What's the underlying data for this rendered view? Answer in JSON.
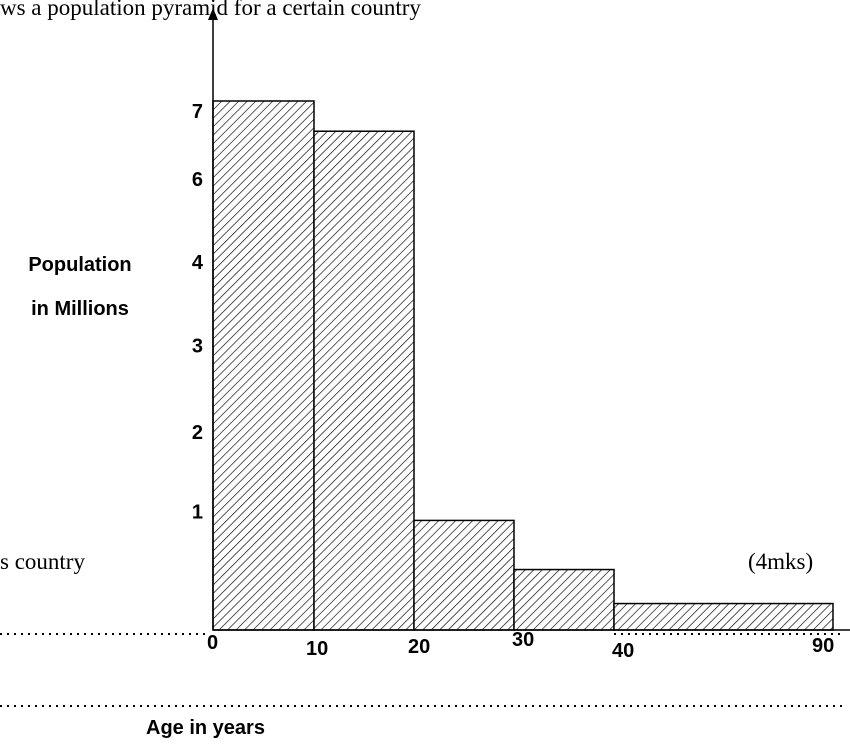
{
  "text": {
    "top_fragment": "ws a population pyramid for a certain country",
    "left_fragment": "s country",
    "marks": "(4mks)"
  },
  "chart_data": {
    "type": "bar",
    "title": "",
    "ylabel": "Population\nin Millions",
    "xlabel": "Age in years",
    "y_tick_labels": [
      "7",
      "6",
      "4",
      "3",
      "2",
      "1"
    ],
    "x_tick_labels": [
      "0",
      "10",
      "20",
      "30",
      "40",
      "90"
    ],
    "bars": [
      {
        "x0": 0,
        "x1": 10,
        "value": 7.0
      },
      {
        "x0": 10,
        "x1": 20,
        "value": 6.6
      },
      {
        "x0": 20,
        "x1": 30,
        "value": 1.45
      },
      {
        "x0": 30,
        "x1": 40,
        "value": 0.8
      },
      {
        "x0": 40,
        "x1": 90,
        "value": 0.35
      }
    ],
    "ylim": [
      0,
      7.5
    ],
    "fill": "diagonal-hatch",
    "grid": false
  }
}
